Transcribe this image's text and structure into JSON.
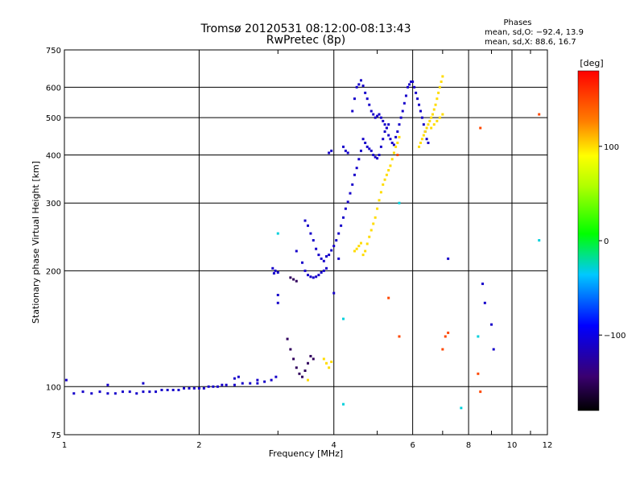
{
  "chart_data": {
    "type": "scatter",
    "title": "Tromsø 20120531 08:12:00-08:13:43",
    "subtitle": "RwPretec (8p)",
    "xlabel": "Frequency [MHz]",
    "ylabel": "Stationary phase Virtual Height [km]",
    "x_scale": "log",
    "y_scale": "log",
    "xlim": [
      1,
      12
    ],
    "ylim": [
      75,
      750
    ],
    "x_ticks": [
      1,
      2,
      4,
      6,
      8,
      10,
      12
    ],
    "x_tick_labels": [
      "1",
      "2",
      "4",
      "6",
      "8",
      "10",
      "12"
    ],
    "y_ticks": [
      75,
      100,
      200,
      300,
      400,
      500,
      600,
      750
    ],
    "y_tick_labels": [
      "75",
      "100",
      "200",
      "300",
      "400",
      "500",
      "600",
      "750"
    ],
    "grid": true,
    "phases_legend": {
      "heading": "Phases",
      "line_o": "mean, sd,O: −92.4, 13.9",
      "line_x": "mean, sd,X:  88.6, 16.7"
    },
    "colorbar": {
      "label": "[deg]",
      "range": [
        -180,
        180
      ],
      "ticks": [
        100,
        0,
        -100
      ],
      "tick_labels": [
        "100",
        "0",
        "−100"
      ]
    },
    "series": [
      {
        "type": "points",
        "phase": -110,
        "points": [
          [
            1.01,
            104
          ],
          [
            1.05,
            96
          ],
          [
            1.1,
            97
          ],
          [
            1.15,
            96
          ],
          [
            1.2,
            97
          ],
          [
            1.25,
            96
          ],
          [
            1.3,
            96
          ],
          [
            1.35,
            97
          ],
          [
            1.4,
            97
          ],
          [
            1.45,
            96
          ],
          [
            1.5,
            97
          ],
          [
            1.55,
            97
          ],
          [
            1.6,
            97
          ],
          [
            1.65,
            98
          ],
          [
            1.7,
            98
          ],
          [
            1.75,
            98
          ],
          [
            1.8,
            98
          ],
          [
            1.85,
            99
          ],
          [
            1.9,
            99
          ],
          [
            1.95,
            99
          ],
          [
            2.0,
            99
          ],
          [
            2.05,
            99
          ],
          [
            2.1,
            100
          ],
          [
            2.15,
            100
          ],
          [
            2.2,
            100
          ],
          [
            2.25,
            101
          ],
          [
            2.3,
            101
          ],
          [
            2.4,
            101
          ],
          [
            2.5,
            102
          ],
          [
            2.6,
            102
          ],
          [
            2.7,
            102
          ],
          [
            2.8,
            103
          ],
          [
            2.9,
            104
          ],
          [
            2.97,
            106
          ],
          [
            1.25,
            101
          ],
          [
            1.5,
            102
          ],
          [
            2.4,
            105
          ],
          [
            2.45,
            106
          ],
          [
            2.7,
            104
          ]
        ]
      },
      {
        "type": "points",
        "phase": -110,
        "points": [
          [
            2.92,
            203
          ],
          [
            2.94,
            197
          ],
          [
            2.96,
            200
          ],
          [
            3.0,
            198
          ],
          [
            3.0,
            173
          ],
          [
            3.0,
            165
          ]
        ]
      },
      {
        "type": "points",
        "phase": -110,
        "points": [
          [
            3.3,
            225
          ],
          [
            3.4,
            210
          ],
          [
            3.45,
            270
          ],
          [
            3.5,
            262
          ],
          [
            3.55,
            250
          ],
          [
            3.6,
            240
          ],
          [
            3.65,
            228
          ],
          [
            3.7,
            220
          ],
          [
            3.75,
            215
          ],
          [
            3.8,
            212
          ],
          [
            3.85,
            218
          ],
          [
            3.9,
            220
          ],
          [
            3.95,
            226
          ],
          [
            4.0,
            232
          ],
          [
            4.05,
            240
          ],
          [
            4.1,
            250
          ],
          [
            4.15,
            262
          ],
          [
            4.2,
            275
          ],
          [
            4.25,
            290
          ],
          [
            4.3,
            302
          ],
          [
            4.35,
            318
          ],
          [
            4.4,
            335
          ],
          [
            4.45,
            355
          ],
          [
            4.5,
            370
          ],
          [
            4.55,
            390
          ],
          [
            4.6,
            410
          ],
          [
            4.65,
            440
          ],
          [
            4.7,
            430
          ],
          [
            4.75,
            420
          ],
          [
            4.8,
            415
          ],
          [
            4.85,
            410
          ],
          [
            4.9,
            400
          ],
          [
            4.95,
            395
          ],
          [
            5.0,
            392
          ],
          [
            5.05,
            400
          ],
          [
            5.1,
            420
          ],
          [
            5.15,
            440
          ],
          [
            5.2,
            460
          ],
          [
            5.25,
            470
          ],
          [
            5.3,
            450
          ],
          [
            5.35,
            440
          ],
          [
            5.4,
            430
          ],
          [
            5.45,
            425
          ],
          [
            5.5,
            445
          ],
          [
            5.55,
            460
          ],
          [
            5.6,
            480
          ],
          [
            5.65,
            500
          ],
          [
            5.7,
            520
          ],
          [
            5.75,
            545
          ],
          [
            5.8,
            570
          ],
          [
            5.85,
            600
          ],
          [
            5.9,
            610
          ],
          [
            5.95,
            620
          ],
          [
            6.0,
            620
          ],
          [
            6.05,
            600
          ],
          [
            6.1,
            580
          ],
          [
            6.15,
            560
          ],
          [
            6.2,
            540
          ],
          [
            6.25,
            520
          ],
          [
            6.3,
            500
          ],
          [
            6.35,
            480
          ],
          [
            6.4,
            460
          ],
          [
            6.45,
            440
          ],
          [
            6.5,
            430
          ],
          [
            4.4,
            520
          ],
          [
            4.45,
            560
          ],
          [
            4.5,
            600
          ],
          [
            4.55,
            610
          ],
          [
            4.6,
            625
          ],
          [
            4.65,
            605
          ],
          [
            4.7,
            580
          ],
          [
            4.75,
            560
          ],
          [
            4.8,
            540
          ],
          [
            4.85,
            520
          ],
          [
            4.9,
            510
          ],
          [
            4.95,
            500
          ],
          [
            5.0,
            505
          ],
          [
            5.05,
            510
          ],
          [
            5.1,
            500
          ],
          [
            5.15,
            490
          ],
          [
            5.2,
            480
          ],
          [
            5.25,
            470
          ],
          [
            5.3,
            480
          ],
          [
            4.2,
            420
          ],
          [
            4.25,
            410
          ],
          [
            4.3,
            405
          ],
          [
            3.9,
            405
          ],
          [
            3.95,
            410
          ],
          [
            3.45,
            200
          ],
          [
            3.5,
            195
          ],
          [
            3.55,
            193
          ],
          [
            3.6,
            192
          ],
          [
            3.65,
            193
          ],
          [
            3.7,
            195
          ],
          [
            3.75,
            198
          ],
          [
            3.8,
            200
          ],
          [
            3.85,
            203
          ]
        ]
      },
      {
        "type": "points",
        "phase": -150,
        "points": [
          [
            3.2,
            192
          ],
          [
            3.25,
            190
          ],
          [
            3.3,
            188
          ],
          [
            3.15,
            133
          ],
          [
            3.2,
            125
          ],
          [
            3.25,
            118
          ],
          [
            3.3,
            112
          ],
          [
            3.35,
            108
          ],
          [
            3.4,
            106
          ],
          [
            3.45,
            110
          ],
          [
            3.5,
            115
          ],
          [
            3.55,
            120
          ],
          [
            3.6,
            118
          ]
        ]
      },
      {
        "type": "points",
        "phase": 100,
        "points": [
          [
            4.65,
            220
          ],
          [
            4.7,
            225
          ],
          [
            4.75,
            235
          ],
          [
            4.8,
            245
          ],
          [
            4.85,
            255
          ],
          [
            4.9,
            265
          ],
          [
            4.95,
            275
          ],
          [
            5.0,
            290
          ],
          [
            5.05,
            305
          ],
          [
            5.1,
            320
          ],
          [
            5.15,
            335
          ],
          [
            5.2,
            345
          ],
          [
            5.25,
            355
          ],
          [
            5.3,
            365
          ],
          [
            5.35,
            375
          ],
          [
            5.4,
            390
          ],
          [
            5.45,
            405
          ],
          [
            5.5,
            420
          ],
          [
            5.55,
            430
          ],
          [
            5.6,
            445
          ],
          [
            4.45,
            225
          ],
          [
            4.5,
            228
          ],
          [
            4.55,
            232
          ],
          [
            4.6,
            236
          ],
          [
            3.8,
            118
          ],
          [
            3.85,
            115
          ],
          [
            3.9,
            112
          ],
          [
            3.95,
            116
          ],
          [
            3.5,
            104
          ],
          [
            6.2,
            420
          ],
          [
            6.25,
            430
          ],
          [
            6.3,
            440
          ],
          [
            6.35,
            450
          ],
          [
            6.4,
            460
          ],
          [
            6.45,
            470
          ],
          [
            6.5,
            480
          ],
          [
            6.55,
            490
          ],
          [
            6.6,
            500
          ],
          [
            6.65,
            510
          ],
          [
            6.7,
            525
          ],
          [
            6.75,
            540
          ],
          [
            6.8,
            560
          ],
          [
            6.85,
            580
          ],
          [
            6.9,
            600
          ],
          [
            6.95,
            620
          ],
          [
            7.0,
            640
          ],
          [
            6.6,
            470
          ],
          [
            6.7,
            480
          ],
          [
            6.8,
            490
          ],
          [
            6.9,
            500
          ],
          [
            7.0,
            510
          ]
        ]
      },
      {
        "type": "points",
        "phase": 150,
        "points": [
          [
            5.55,
            400
          ],
          [
            5.3,
            170
          ],
          [
            5.6,
            135
          ],
          [
            7.1,
            135
          ],
          [
            7.2,
            138
          ],
          [
            7.0,
            125
          ],
          [
            8.5,
            470
          ],
          [
            8.5,
            97
          ],
          [
            11.5,
            510
          ],
          [
            8.4,
            108
          ]
        ]
      },
      {
        "type": "points",
        "phase": -30,
        "points": [
          [
            4.2,
            150
          ],
          [
            4.2,
            90
          ],
          [
            5.6,
            300
          ],
          [
            7.7,
            88
          ],
          [
            8.4,
            135
          ],
          [
            11.5,
            240
          ],
          [
            3.0,
            250
          ]
        ]
      },
      {
        "type": "points",
        "phase": -110,
        "points": [
          [
            8.6,
            185
          ],
          [
            8.7,
            165
          ],
          [
            9.0,
            145
          ],
          [
            9.1,
            125
          ],
          [
            7.2,
            215
          ],
          [
            4.0,
            175
          ],
          [
            4.1,
            215
          ]
        ]
      }
    ]
  }
}
